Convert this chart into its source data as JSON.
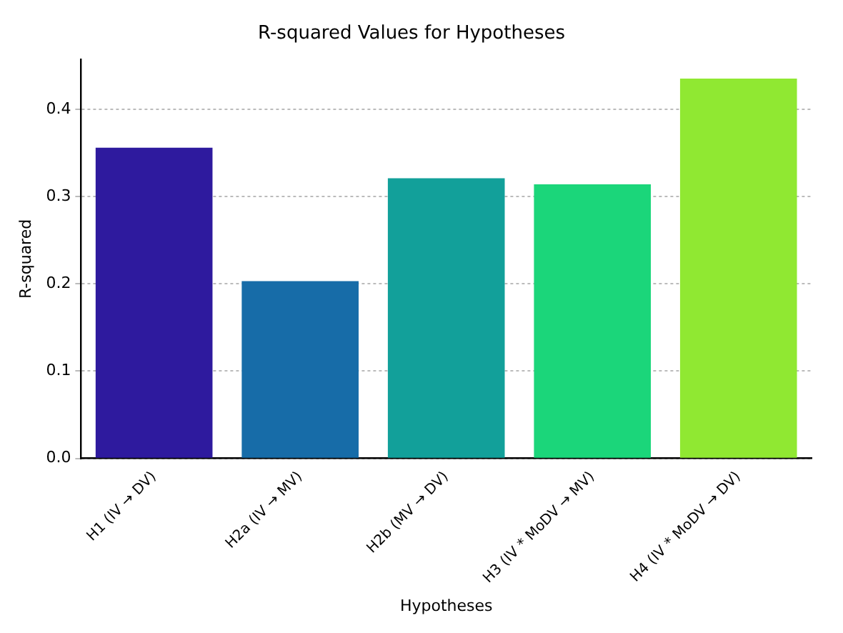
{
  "chart_data": {
    "type": "bar",
    "title": "R-squared Values for Hypotheses",
    "xlabel": "Hypotheses",
    "ylabel": "R-squared",
    "categories": [
      "H1 (IV → DV)",
      "H2a (IV → MV)",
      "H2b (MV → DV)",
      "H3 (IV * MoDV → MV)",
      "H4 (IV * MoDV → DV)"
    ],
    "values": [
      0.356,
      0.203,
      0.321,
      0.314,
      0.435
    ],
    "colors": [
      "#2e1a9e",
      "#176ca8",
      "#12a09a",
      "#1bd67a",
      "#90e832"
    ],
    "ylim": [
      0,
      0.457
    ],
    "yticks": [
      {
        "value": 0,
        "label": "0.0"
      },
      {
        "value": 0.1,
        "label": "0.1"
      },
      {
        "value": 0.2,
        "label": "0.2"
      },
      {
        "value": 0.3,
        "label": "0.3"
      },
      {
        "value": 0.4,
        "label": "0.4"
      }
    ],
    "grid": "y",
    "legend": false
  }
}
